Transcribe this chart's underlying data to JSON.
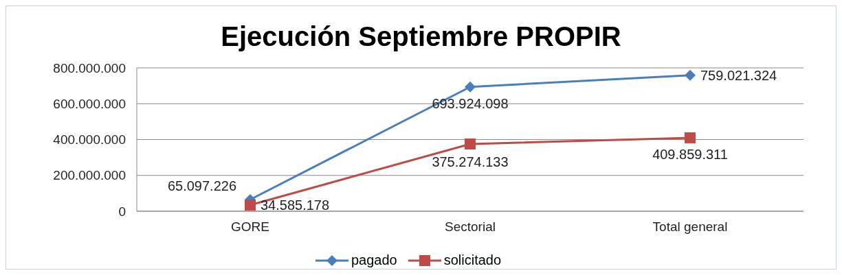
{
  "chart_data": {
    "type": "line",
    "title": "Ejecución Septiembre PROPIR",
    "categories": [
      "GORE",
      "Sectorial",
      "Total general"
    ],
    "series": [
      {
        "name": "pagado",
        "color": "#4a7ebb",
        "marker": "diamond",
        "values": [
          65097226,
          693924098,
          759021324
        ],
        "value_labels": [
          "65.097.226",
          "693.924.098",
          "759.021.324"
        ]
      },
      {
        "name": "solicitado",
        "color": "#be4b48",
        "marker": "square",
        "values": [
          34585178,
          375274133,
          409859311
        ],
        "value_labels": [
          "34.585.178",
          "375.274.133",
          "409.859.311"
        ]
      }
    ],
    "ylim": [
      0,
      800000000
    ],
    "yticks": [
      {
        "value": 0,
        "label": "0"
      },
      {
        "value": 200000000,
        "label": "200.000.000"
      },
      {
        "value": 400000000,
        "label": "400.000.000"
      },
      {
        "value": 600000000,
        "label": "600.000.000"
      },
      {
        "value": 800000000,
        "label": "800.000.000"
      }
    ],
    "grid": "y",
    "legend": "bottom",
    "line_style": "solid"
  }
}
